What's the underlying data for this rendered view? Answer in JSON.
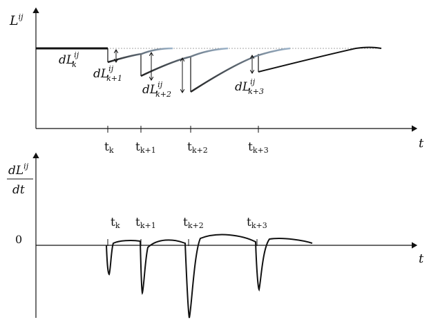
{
  "top_plot": {
    "y_label": {
      "base": "L",
      "sup": "ij"
    },
    "x_label": "t",
    "ticks": [
      {
        "base": "t",
        "sub": "k"
      },
      {
        "base": "t",
        "sub": "k+1"
      },
      {
        "base": "t",
        "sub": "k+2"
      },
      {
        "base": "t",
        "sub": "k+3"
      }
    ],
    "drops": [
      {
        "base": "dL",
        "sup": "ij",
        "sub": "k"
      },
      {
        "base": "dL",
        "sup": "ij",
        "sub": "k+1"
      },
      {
        "base": "dL",
        "sup": "ij",
        "sub": "k+2"
      },
      {
        "base": "dL",
        "sup": "ij",
        "sub": "k+3"
      }
    ]
  },
  "bottom_plot": {
    "y_label_num": {
      "base": "dL",
      "sup": "ij"
    },
    "y_label_den": "dt",
    "zero_label": "0",
    "x_label": "t",
    "ticks": [
      {
        "base": "t",
        "sub": "k"
      },
      {
        "base": "t",
        "sub": "k+1"
      },
      {
        "base": "t",
        "sub": "k+2"
      },
      {
        "base": "t",
        "sub": "k+3"
      }
    ]
  },
  "colors": {
    "ink": "#111111",
    "ghost": "#9fb6cc",
    "baseline": "#888888"
  }
}
